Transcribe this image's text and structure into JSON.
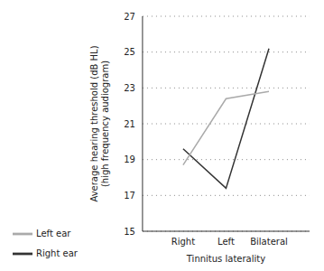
{
  "chart_data": {
    "type": "line",
    "x_label": "Tinnitus laterality",
    "y_label": [
      "Average hearing threshold (dB HL)",
      "(high frequency audiogram)"
    ],
    "categories": [
      "Right",
      "Left",
      "Bilateral"
    ],
    "series": [
      {
        "name": "Right ear",
        "color": "#333333",
        "values": [
          19.6,
          17.4,
          25.2
        ]
      },
      {
        "name": "Left ear",
        "color": "#aaaaaa",
        "values": [
          18.7,
          22.4,
          22.8
        ]
      }
    ],
    "ylim": [
      15,
      27
    ],
    "yticks": [
      15,
      17,
      19,
      21,
      23,
      25,
      27
    ],
    "grid": true,
    "legend": "bottom-left"
  }
}
